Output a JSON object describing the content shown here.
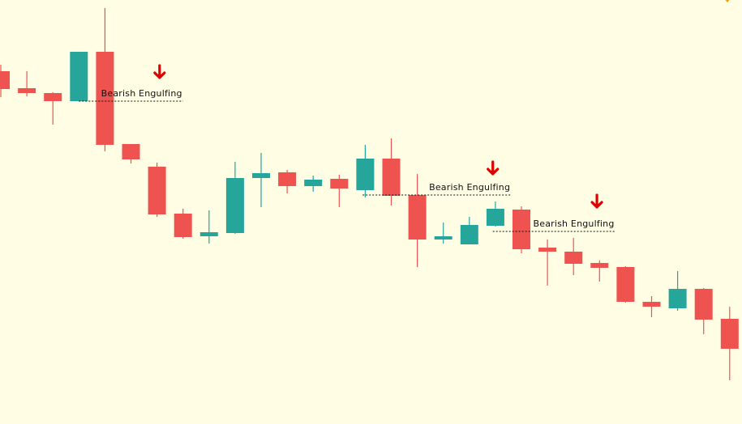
{
  "chart_data": {
    "type": "candlestick",
    "title": "",
    "xlabel": "",
    "ylabel": "",
    "grid": false,
    "axes_visible": false,
    "ylim": [
      0,
      524
    ],
    "colors": {
      "background": "#fffde4",
      "bullish": "#26a69a",
      "bearish": "#ef5350",
      "marker": "#e00000",
      "corner_mark": "#f0a000"
    },
    "candles": [
      {
        "open": 436,
        "high": 444,
        "low": 404,
        "close": 414
      },
      {
        "open": 415,
        "high": 436,
        "low": 405,
        "close": 409
      },
      {
        "open": 409,
        "high": 410,
        "low": 370,
        "close": 399
      },
      {
        "open": 399,
        "high": 460,
        "low": 399,
        "close": 460
      },
      {
        "open": 460,
        "high": 514,
        "low": 337,
        "close": 345
      },
      {
        "open": 346,
        "high": 346,
        "low": 322,
        "close": 327
      },
      {
        "open": 318,
        "high": 323,
        "low": 256,
        "close": 259
      },
      {
        "open": 260,
        "high": 266,
        "low": 229,
        "close": 231
      },
      {
        "open": 232,
        "high": 264,
        "low": 223,
        "close": 237
      },
      {
        "open": 236,
        "high": 324,
        "low": 235,
        "close": 304
      },
      {
        "open": 304,
        "high": 335,
        "low": 268,
        "close": 310
      },
      {
        "open": 311,
        "high": 314,
        "low": 285,
        "close": 294
      },
      {
        "open": 294,
        "high": 307,
        "low": 287,
        "close": 302
      },
      {
        "open": 303,
        "high": 308,
        "low": 268,
        "close": 291
      },
      {
        "open": 289,
        "high": 345,
        "low": 280,
        "close": 328
      },
      {
        "open": 328,
        "high": 353,
        "low": 270,
        "close": 282
      },
      {
        "open": 283,
        "high": 309,
        "low": 194,
        "close": 228
      },
      {
        "open": 228,
        "high": 249,
        "low": 223,
        "close": 232
      },
      {
        "open": 222,
        "high": 256,
        "low": 222,
        "close": 246
      },
      {
        "open": 245,
        "high": 275,
        "low": 244,
        "close": 266
      },
      {
        "open": 265,
        "high": 269,
        "low": 211,
        "close": 216
      },
      {
        "open": 218,
        "high": 228,
        "low": 171,
        "close": 213
      },
      {
        "open": 213,
        "high": 230,
        "low": 184,
        "close": 198
      },
      {
        "open": 199,
        "high": 202,
        "low": 176,
        "close": 193
      },
      {
        "open": 194,
        "high": 195,
        "low": 150,
        "close": 151
      },
      {
        "open": 151,
        "high": 158,
        "low": 132,
        "close": 145
      },
      {
        "open": 143,
        "high": 189,
        "low": 140,
        "close": 167
      },
      {
        "open": 167,
        "high": 168,
        "low": 111,
        "close": 129
      },
      {
        "open": 130,
        "high": 145,
        "low": 54,
        "close": 93
      }
    ],
    "annotations": [
      {
        "text": "Bearish Engulfing",
        "candle_index": 4,
        "level": 399,
        "line_from_index": 3,
        "line_to_index": 7,
        "arrow_index": 6.1,
        "arrow_level": 427
      },
      {
        "text": "Bearish Engulfing",
        "candle_index": 15,
        "level": 283,
        "line_from_index": 13.9,
        "line_to_index": 19.6,
        "arrow_index": 18.9,
        "arrow_level": 308
      },
      {
        "text": "Bearish Engulfing",
        "candle_index": 20,
        "level": 238,
        "line_from_index": 18.9,
        "line_to_index": 23.6,
        "arrow_index": 22.9,
        "arrow_level": 267
      }
    ]
  }
}
